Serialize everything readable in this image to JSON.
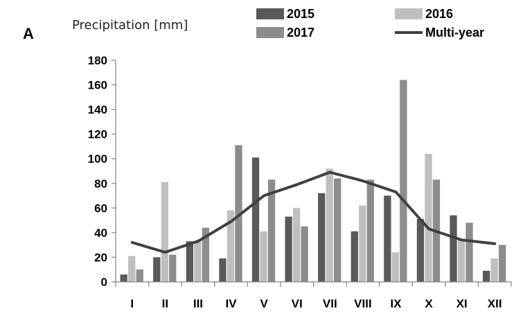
{
  "panel_label": "A",
  "chart_data": {
    "type": "bar",
    "title": "",
    "xlabel": "",
    "ylabel": "Precipitation [mm]",
    "ylim": [
      0,
      180
    ],
    "yticks": [
      0,
      20,
      40,
      60,
      80,
      100,
      120,
      140,
      160,
      180
    ],
    "grid": false,
    "legend_position": "top",
    "categories": [
      "I",
      "II",
      "III",
      "IV",
      "V",
      "VI",
      "VII",
      "VIII",
      "IX",
      "X",
      "XI",
      "XII"
    ],
    "series": [
      {
        "name": "2015",
        "type": "bar",
        "color": "#595959",
        "values": [
          6,
          20,
          33,
          19,
          101,
          53,
          72,
          41,
          70,
          51,
          54,
          9
        ]
      },
      {
        "name": "2016",
        "type": "bar",
        "color": "#bfbfbf",
        "values": [
          21,
          81,
          33,
          58,
          41,
          60,
          92,
          62,
          24,
          104,
          35,
          19
        ]
      },
      {
        "name": "2017",
        "type": "bar",
        "color": "#8c8c8c",
        "values": [
          10,
          22,
          44,
          111,
          83,
          45,
          84,
          83,
          164,
          83,
          48,
          30
        ]
      },
      {
        "name": "Multi-year",
        "type": "line",
        "color": "#404040",
        "values": [
          32,
          24,
          33,
          49,
          70,
          79,
          89,
          82,
          73,
          43,
          34,
          31
        ]
      }
    ]
  }
}
